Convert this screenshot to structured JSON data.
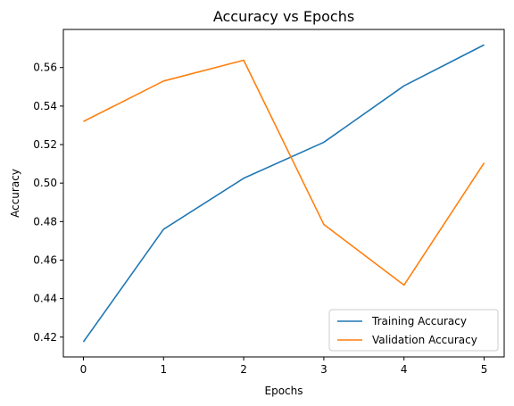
{
  "chart_data": {
    "type": "line",
    "title": "Accuracy vs Epochs",
    "xlabel": "Epochs",
    "ylabel": "Accuracy",
    "x": [
      0,
      1,
      2,
      3,
      4,
      5
    ],
    "xticks": [
      "0",
      "1",
      "2",
      "3",
      "4",
      "5"
    ],
    "yticks": [
      "0.42",
      "0.44",
      "0.46",
      "0.48",
      "0.50",
      "0.52",
      "0.54",
      "0.56"
    ],
    "xlim": [
      -0.25,
      5.25
    ],
    "ylim": [
      0.4097,
      0.5798
    ],
    "grid": false,
    "legend_position": "lower-right",
    "series": [
      {
        "name": "Training Accuracy",
        "color": "#1f77b4",
        "values": [
          0.4175,
          0.476,
          0.5025,
          0.5212,
          0.5505,
          0.5718
        ]
      },
      {
        "name": "Validation Accuracy",
        "color": "#ff7f0e",
        "values": [
          0.532,
          0.553,
          0.5638,
          0.4785,
          0.447,
          0.5105
        ]
      }
    ]
  }
}
